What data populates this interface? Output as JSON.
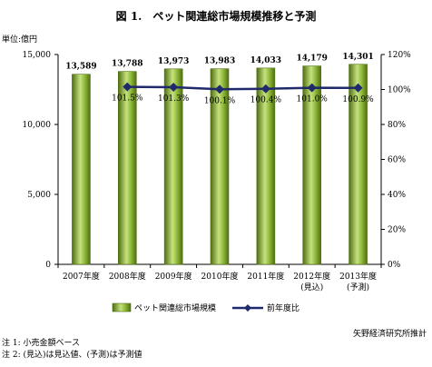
{
  "chart_data": {
    "type": "bar",
    "title": "図 1.　ペット関連総市場規模推移と予測",
    "unit_label": "単位:億円",
    "categories": [
      "2007年度",
      "2008年度",
      "2009年度",
      "2010年度",
      "2011年度",
      "2012年度",
      "2013年度"
    ],
    "category_sublabels": [
      "",
      "",
      "",
      "",
      "",
      "(見込)",
      "(予測)"
    ],
    "series": [
      {
        "name": "ペット関連総市場規模",
        "type": "bar",
        "axis": "left",
        "values": [
          13589,
          13788,
          13973,
          13983,
          14033,
          14179,
          14301
        ],
        "value_labels": [
          "13,589",
          "13,788",
          "13,973",
          "13,983",
          "14,033",
          "14,179",
          "14,301"
        ]
      },
      {
        "name": "前年度比",
        "type": "line",
        "axis": "right",
        "values": [
          null,
          101.5,
          101.3,
          100.1,
          100.4,
          101.0,
          100.9
        ],
        "value_labels": [
          "",
          "101.5%",
          "101.3%",
          "100.1%",
          "100.4%",
          "101.0%",
          "100.9%"
        ]
      }
    ],
    "y_left": {
      "min": 0,
      "max": 15000,
      "ticks": [
        0,
        5000,
        10000,
        15000
      ],
      "tick_labels": [
        "0",
        "5,000",
        "10,000",
        "15,000"
      ]
    },
    "y_right": {
      "min": 0,
      "max": 120,
      "ticks": [
        0,
        20,
        40,
        60,
        80,
        100,
        120
      ],
      "tick_labels": [
        "0%",
        "20%",
        "40%",
        "60%",
        "80%",
        "100%",
        "120%"
      ]
    },
    "grid": false,
    "legend_position": "bottom",
    "colors": {
      "bar": "#8fb93a",
      "bar_dark": "#4f6e12",
      "bar_light": "#c6e27f",
      "line": "#1f2a6b"
    }
  },
  "source": "矢野経済研究所推計",
  "notes": [
    "注 1: 小売金額ベース",
    "注 2: (見込)は見込値、(予測)は予測値"
  ]
}
